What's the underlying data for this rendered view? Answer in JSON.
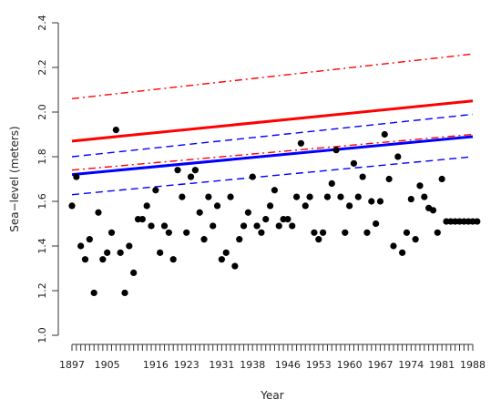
{
  "chart_data": {
    "type": "scatter",
    "xlabel": "Year",
    "ylabel": "Sea−level (meters)",
    "xlim": [
      1895,
      1990
    ],
    "ylim": [
      1.0,
      2.4
    ],
    "x_ticks": [
      1897,
      1905,
      1916,
      1923,
      1931,
      1938,
      1946,
      1953,
      1960,
      1967,
      1974,
      1981,
      1988
    ],
    "y_ticks": [
      1.0,
      1.2,
      1.4,
      1.6,
      1.8,
      2.0,
      2.2,
      2.4
    ],
    "grid": false,
    "minor_x_ticks_every": 1,
    "points": {
      "x": [
        1897,
        1898,
        1899,
        1900,
        1901,
        1902,
        1903,
        1904,
        1905,
        1906,
        1907,
        1908,
        1909,
        1910,
        1911,
        1912,
        1913,
        1914,
        1915,
        1916,
        1917,
        1918,
        1919,
        1920,
        1921,
        1922,
        1923,
        1924,
        1925,
        1926,
        1927,
        1928,
        1929,
        1930,
        1931,
        1932,
        1933,
        1934,
        1935,
        1936,
        1937,
        1938,
        1939,
        1940,
        1941,
        1942,
        1943,
        1944,
        1945,
        1946,
        1947,
        1948,
        1949,
        1950,
        1951,
        1952,
        1953,
        1954,
        1955,
        1956,
        1957,
        1958,
        1959,
        1960,
        1961,
        1962,
        1963,
        1964,
        1965,
        1966,
        1967,
        1968,
        1969,
        1970,
        1971,
        1972,
        1973,
        1974,
        1975,
        1976,
        1977,
        1978,
        1979,
        1980,
        1981,
        1982,
        1983,
        1984,
        1985,
        1986,
        1987,
        1988,
        1989
      ],
      "y": [
        1.58,
        1.71,
        1.4,
        1.34,
        1.43,
        1.19,
        1.55,
        1.34,
        1.37,
        1.46,
        1.92,
        1.37,
        1.19,
        1.4,
        1.28,
        1.52,
        1.52,
        1.58,
        1.49,
        1.65,
        1.37,
        1.49,
        1.46,
        1.34,
        1.74,
        1.62,
        1.46,
        1.71,
        1.74,
        1.55,
        1.43,
        1.62,
        1.49,
        1.58,
        1.34,
        1.37,
        1.62,
        1.31,
        1.43,
        1.49,
        1.55,
        1.71,
        1.49,
        1.46,
        1.52,
        1.58,
        1.65,
        1.49,
        1.52,
        1.52,
        1.49,
        1.62,
        1.86,
        1.58,
        1.62,
        1.46,
        1.43,
        1.46,
        1.62,
        1.68,
        1.83,
        1.62,
        1.46,
        1.58,
        1.77,
        1.62,
        1.71,
        1.46,
        1.6,
        1.5,
        1.6,
        1.9,
        1.7,
        1.4,
        1.8,
        1.37,
        1.46,
        1.61,
        1.43,
        1.67,
        1.62,
        1.57,
        1.56,
        1.46,
        1.7,
        1.51,
        1.51,
        1.51,
        1.51,
        1.51,
        1.51,
        1.51,
        1.51
      ]
    },
    "lines": [
      {
        "color": "#ff0000",
        "style": "dashdot",
        "width": 1.4,
        "x": [
          1897,
          1988
        ],
        "y": [
          2.06,
          2.26
        ]
      },
      {
        "color": "#ff0000",
        "style": "solid",
        "width": 3,
        "x": [
          1897,
          1988
        ],
        "y": [
          1.87,
          2.05
        ]
      },
      {
        "color": "#0000ff",
        "style": "dashed",
        "width": 1.4,
        "x": [
          1897,
          1988
        ],
        "y": [
          1.8,
          1.99
        ]
      },
      {
        "color": "#ff0000",
        "style": "dashdot",
        "width": 1.4,
        "x": [
          1897,
          1988
        ],
        "y": [
          1.74,
          1.9
        ]
      },
      {
        "color": "#0000ff",
        "style": "solid",
        "width": 3,
        "x": [
          1897,
          1988
        ],
        "y": [
          1.72,
          1.89
        ]
      },
      {
        "color": "#0000ff",
        "style": "dashed",
        "width": 1.4,
        "x": [
          1897,
          1988
        ],
        "y": [
          1.63,
          1.8
        ]
      }
    ]
  }
}
